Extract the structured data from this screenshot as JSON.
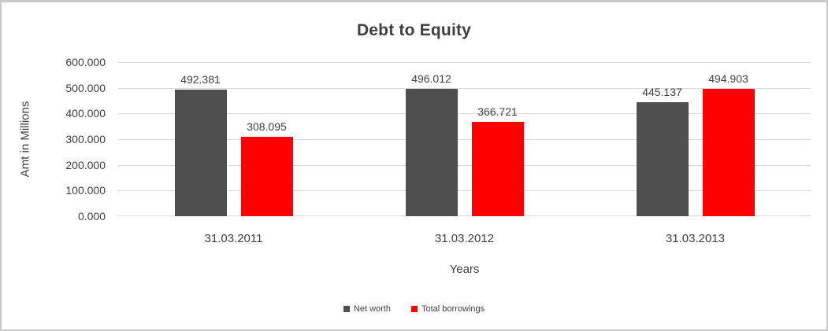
{
  "chart_data": {
    "type": "bar",
    "title": "Debt to Equity",
    "xlabel": "Years",
    "ylabel": "Amt in Millions",
    "categories": [
      "31.03.2011",
      "31.03.2012",
      "31.03.2013"
    ],
    "series": [
      {
        "name": "Net worth",
        "color": "#4f4f4f",
        "values": [
          492.381,
          496.012,
          445.137
        ]
      },
      {
        "name": "Total borrowings",
        "color": "#ff0000",
        "values": [
          308.095,
          366.721,
          494.903
        ]
      }
    ],
    "data_label_decimals": 3,
    "ylim": [
      0,
      600
    ],
    "ytick_labels": [
      "0.000",
      "100.000",
      "200.000",
      "300.000",
      "400.000",
      "500.000",
      "600.000"
    ],
    "grid": true,
    "legend_position": "bottom",
    "colors": {
      "gridline": "#d9d9d9",
      "text": "#3f3f3f",
      "background": "#ffffff",
      "frame_border": "#c9c9c9"
    }
  }
}
